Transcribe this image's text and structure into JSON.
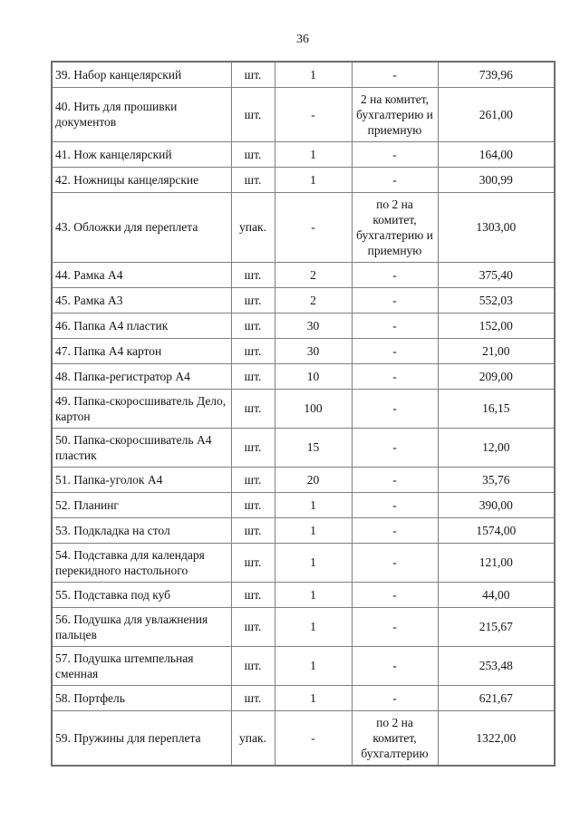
{
  "page": {
    "number": "36"
  },
  "colors": {
    "background": "#ffffff",
    "text": "#141414",
    "table_border": "#7f7f7f"
  },
  "table": {
    "rows": [
      {
        "name": "39. Набор канцелярский",
        "unit": "шт.",
        "qty": "1",
        "note": "-",
        "price": "739,96"
      },
      {
        "name": "40. Нить для прошивки документов",
        "unit": "шт.",
        "qty": "-",
        "note": "2 на комитет, бухгалтерию и приемную",
        "price": "261,00"
      },
      {
        "name": "41. Нож канцелярский",
        "unit": "шт.",
        "qty": "1",
        "note": "-",
        "price": "164,00"
      },
      {
        "name": "42. Ножницы канцелярские",
        "unit": "шт.",
        "qty": "1",
        "note": "-",
        "price": "300,99"
      },
      {
        "name": "43. Обложки для переплета",
        "unit": "упак.",
        "qty": "-",
        "note": "по 2 на комитет, бухгалтерию и приемную",
        "price": "1303,00"
      },
      {
        "name": "44. Рамка А4",
        "unit": "шт.",
        "qty": "2",
        "note": "-",
        "price": "375,40"
      },
      {
        "name": "45. Рамка А3",
        "unit": "шт.",
        "qty": "2",
        "note": "-",
        "price": "552,03"
      },
      {
        "name": "46. Папка А4 пластик",
        "unit": "шт.",
        "qty": "30",
        "note": "-",
        "price": "152,00"
      },
      {
        "name": "47. Папка А4 картон",
        "unit": "шт.",
        "qty": "30",
        "note": "-",
        "price": "21,00"
      },
      {
        "name": "48. Папка-регистратор А4",
        "unit": "шт.",
        "qty": "10",
        "note": "-",
        "price": "209,00"
      },
      {
        "name": "49. Папка-скоросшиватель Дело, картон",
        "unit": "шт.",
        "qty": "100",
        "note": "-",
        "price": "16,15"
      },
      {
        "name": "50. Папка-скоросшиватель А4 пластик",
        "unit": "шт.",
        "qty": "15",
        "note": "-",
        "price": "12,00"
      },
      {
        "name": "51. Папка-уголок А4",
        "unit": "шт.",
        "qty": "20",
        "note": "-",
        "price": "35,76"
      },
      {
        "name": "52. Планинг",
        "unit": "шт.",
        "qty": "1",
        "note": "-",
        "price": "390,00"
      },
      {
        "name": "53. Подкладка на стол",
        "unit": "шт.",
        "qty": "1",
        "note": "-",
        "price": "1574,00"
      },
      {
        "name": "54. Подставка для календаря перекидного настольного",
        "unit": "шт.",
        "qty": "1",
        "note": "-",
        "price": "121,00"
      },
      {
        "name": "55. Подставка под куб",
        "unit": "шт.",
        "qty": "1",
        "note": "-",
        "price": "44,00"
      },
      {
        "name": "56. Подушка для увлажнения пальцев",
        "unit": "шт.",
        "qty": "1",
        "note": "-",
        "price": "215,67"
      },
      {
        "name": "57. Подушка штемпельная сменная",
        "unit": "шт.",
        "qty": "1",
        "note": "-",
        "price": "253,48"
      },
      {
        "name": "58. Портфель",
        "unit": "шт.",
        "qty": "1",
        "note": "-",
        "price": "621,67"
      },
      {
        "name": "59. Пружины для переплета",
        "unit": "упак.",
        "qty": "-",
        "note": "по 2 на комитет, бухгалтерию",
        "price": "1322,00"
      }
    ]
  }
}
